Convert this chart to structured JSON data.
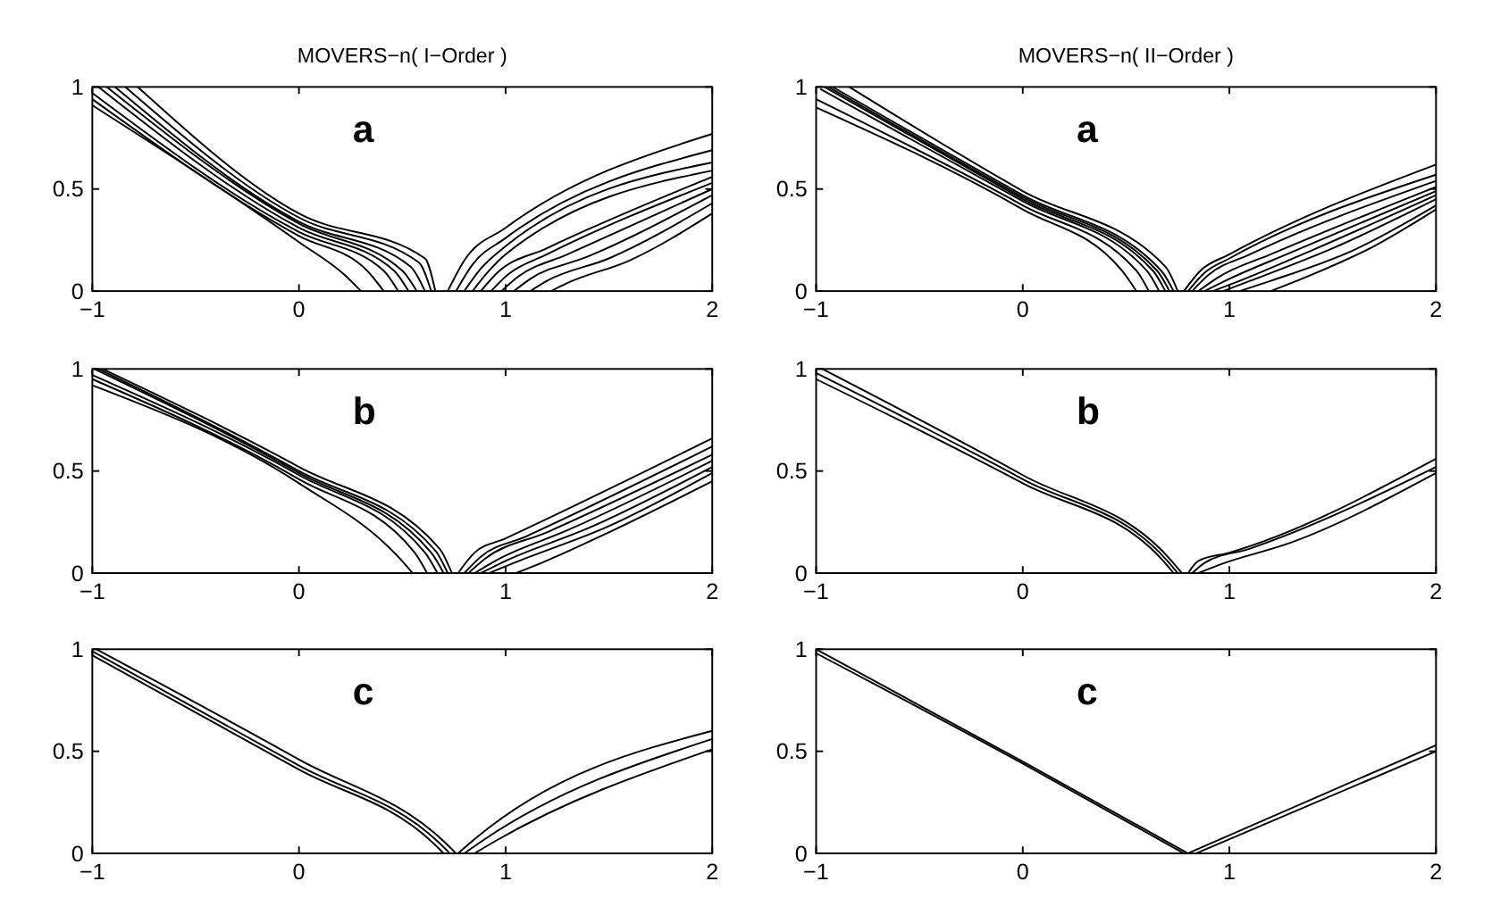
{
  "chart_data": [
    {
      "type": "line",
      "title": "MOVERS−n( I−Order )",
      "annotations": [
        "a"
      ],
      "xlim": [
        -1,
        2
      ],
      "ylim": [
        0,
        1
      ],
      "xticks": [
        -1,
        0,
        1,
        2
      ],
      "yticks": [
        0,
        0.5,
        1
      ],
      "series": [
        {
          "color": "#000000",
          "x": [
            -1,
            0,
            0.22,
            0.3
          ],
          "values": [
            0.91,
            0.24,
            0.08,
            0
          ]
        },
        {
          "color": "#000000",
          "x": [
            -1,
            0,
            0.33,
            0.41
          ],
          "values": [
            0.94,
            0.27,
            0.1,
            0
          ]
        },
        {
          "color": "#000000",
          "x": [
            -1,
            0,
            0.41,
            0.48
          ],
          "values": [
            0.97,
            0.29,
            0.1,
            0
          ]
        },
        {
          "color": "#000000",
          "x": [
            -0.97,
            0,
            0.46,
            0.53
          ],
          "values": [
            1,
            0.31,
            0.1,
            0
          ]
        },
        {
          "color": "#000000",
          "x": [
            -0.93,
            0,
            0.5,
            0.57
          ],
          "values": [
            1,
            0.33,
            0.1,
            0
          ]
        },
        {
          "color": "#000000",
          "x": [
            -0.89,
            0,
            0.54,
            0.61
          ],
          "values": [
            1,
            0.34,
            0.12,
            0
          ]
        },
        {
          "color": "#000000",
          "x": [
            -0.84,
            0,
            0.58,
            0.64
          ],
          "values": [
            1,
            0.36,
            0.14,
            0
          ]
        },
        {
          "color": "#000000",
          "x": [
            -0.78,
            0,
            0.61,
            0.66
          ],
          "values": [
            1,
            0.38,
            0.16,
            0
          ]
        },
        {
          "color": "#000000",
          "x": [
            0.72,
            0.8,
            1,
            2
          ],
          "values": [
            0,
            0.15,
            0.31,
            0.77
          ]
        },
        {
          "color": "#000000",
          "x": [
            0.76,
            0.84,
            1,
            2
          ],
          "values": [
            0,
            0.13,
            0.26,
            0.69
          ]
        },
        {
          "color": "#000000",
          "x": [
            0.8,
            0.88,
            1,
            2
          ],
          "values": [
            0,
            0.11,
            0.22,
            0.63
          ]
        },
        {
          "color": "#000000",
          "x": [
            0.84,
            0.92,
            1,
            2
          ],
          "values": [
            0,
            0.1,
            0.18,
            0.59
          ]
        },
        {
          "color": "#000000",
          "x": [
            0.88,
            0.96,
            1.2,
            2
          ],
          "values": [
            0,
            0.09,
            0.21,
            0.56
          ]
        },
        {
          "color": "#000000",
          "x": [
            0.93,
            1.01,
            1.2,
            2
          ],
          "values": [
            0,
            0.08,
            0.18,
            0.53
          ]
        },
        {
          "color": "#000000",
          "x": [
            0.98,
            1.06,
            1.3,
            2
          ],
          "values": [
            0,
            0.07,
            0.18,
            0.5
          ]
        },
        {
          "color": "#000000",
          "x": [
            1.04,
            1.12,
            1.4,
            2
          ],
          "values": [
            0,
            0.06,
            0.17,
            0.47
          ]
        },
        {
          "color": "#000000",
          "x": [
            1.12,
            1.2,
            1.5,
            2
          ],
          "values": [
            0,
            0.05,
            0.16,
            0.43
          ]
        },
        {
          "color": "#000000",
          "x": [
            1.22,
            1.3,
            1.6,
            2
          ],
          "values": [
            0,
            0.04,
            0.15,
            0.38
          ]
        }
      ]
    },
    {
      "type": "line",
      "title": "MOVERS−n( II−Order )",
      "annotations": [
        "a"
      ],
      "xlim": [
        -1,
        2
      ],
      "ylim": [
        0,
        1
      ],
      "xticks": [
        -1,
        0,
        1,
        2
      ],
      "yticks": [
        0,
        0.5,
        1
      ],
      "series": [
        {
          "color": "#000000",
          "x": [
            -1,
            0,
            0.48,
            0.55
          ],
          "values": [
            0.9,
            0.4,
            0.1,
            0
          ]
        },
        {
          "color": "#000000",
          "x": [
            -1,
            0,
            0.55,
            0.61
          ],
          "values": [
            0.94,
            0.42,
            0.1,
            0
          ]
        },
        {
          "color": "#000000",
          "x": [
            -0.98,
            0,
            0.6,
            0.66
          ],
          "values": [
            0.99,
            0.44,
            0.1,
            0
          ]
        },
        {
          "color": "#000000",
          "x": [
            -0.96,
            0,
            0.63,
            0.69
          ],
          "values": [
            1,
            0.45,
            0.1,
            0
          ]
        },
        {
          "color": "#000000",
          "x": [
            -0.94,
            0,
            0.65,
            0.71
          ],
          "values": [
            1,
            0.46,
            0.1,
            0
          ]
        },
        {
          "color": "#000000",
          "x": [
            -0.92,
            0,
            0.67,
            0.73
          ],
          "values": [
            1,
            0.47,
            0.1,
            0
          ]
        },
        {
          "color": "#000000",
          "x": [
            -0.84,
            0,
            0.69,
            0.75
          ],
          "values": [
            1,
            0.49,
            0.12,
            0
          ]
        },
        {
          "color": "#000000",
          "x": [
            0.78,
            0.86,
            1,
            2
          ],
          "values": [
            0,
            0.1,
            0.18,
            0.62
          ]
        },
        {
          "color": "#000000",
          "x": [
            0.8,
            0.88,
            1,
            2
          ],
          "values": [
            0,
            0.09,
            0.16,
            0.57
          ]
        },
        {
          "color": "#000000",
          "x": [
            0.82,
            0.9,
            1.1,
            2
          ],
          "values": [
            0,
            0.08,
            0.18,
            0.54
          ]
        },
        {
          "color": "#000000",
          "x": [
            0.85,
            0.95,
            1.2,
            2
          ],
          "values": [
            0,
            0.07,
            0.18,
            0.51
          ]
        },
        {
          "color": "#000000",
          "x": [
            0.88,
            1,
            1.3,
            2
          ],
          "values": [
            0,
            0.06,
            0.19,
            0.49
          ]
        },
        {
          "color": "#000000",
          "x": [
            0.92,
            1.05,
            1.4,
            2
          ],
          "values": [
            0,
            0.05,
            0.2,
            0.47
          ]
        },
        {
          "color": "#000000",
          "x": [
            0.97,
            1.1,
            1.5,
            2
          ],
          "values": [
            0,
            0.05,
            0.21,
            0.45
          ]
        },
        {
          "color": "#000000",
          "x": [
            1.05,
            1.2,
            1.6,
            2
          ],
          "values": [
            0,
            0.05,
            0.2,
            0.42
          ]
        },
        {
          "color": "#000000",
          "x": [
            1.2,
            1.35,
            1.7,
            2
          ],
          "values": [
            0,
            0.06,
            0.22,
            0.4
          ]
        }
      ]
    },
    {
      "type": "line",
      "annotations": [
        "b"
      ],
      "xlim": [
        -1,
        2
      ],
      "ylim": [
        0,
        1
      ],
      "xticks": [
        -1,
        0,
        1,
        2
      ],
      "yticks": [
        0,
        0.5,
        1
      ],
      "series": [
        {
          "color": "#000000",
          "x": [
            -1,
            0,
            0.48,
            0.55
          ],
          "values": [
            0.92,
            0.44,
            0.08,
            0
          ]
        },
        {
          "color": "#000000",
          "x": [
            -1,
            0,
            0.56,
            0.62
          ],
          "values": [
            0.95,
            0.46,
            0.1,
            0
          ]
        },
        {
          "color": "#000000",
          "x": [
            -1,
            0,
            0.61,
            0.67
          ],
          "values": [
            0.97,
            0.48,
            0.1,
            0
          ]
        },
        {
          "color": "#000000",
          "x": [
            -0.99,
            0,
            0.64,
            0.7
          ],
          "values": [
            1,
            0.49,
            0.1,
            0
          ]
        },
        {
          "color": "#000000",
          "x": [
            -0.97,
            0,
            0.66,
            0.72
          ],
          "values": [
            1,
            0.5,
            0.11,
            0
          ]
        },
        {
          "color": "#000000",
          "x": [
            -0.95,
            0,
            0.68,
            0.74
          ],
          "values": [
            1,
            0.52,
            0.12,
            0
          ]
        },
        {
          "color": "#000000",
          "x": [
            0.77,
            0.85,
            1,
            2
          ],
          "values": [
            0,
            0.1,
            0.17,
            0.66
          ]
        },
        {
          "color": "#000000",
          "x": [
            0.8,
            0.88,
            1.1,
            2
          ],
          "values": [
            0,
            0.08,
            0.18,
            0.62
          ]
        },
        {
          "color": "#000000",
          "x": [
            0.82,
            0.9,
            1.2,
            2
          ],
          "values": [
            0,
            0.07,
            0.2,
            0.58
          ]
        },
        {
          "color": "#000000",
          "x": [
            0.85,
            0.95,
            1.3,
            2
          ],
          "values": [
            0,
            0.06,
            0.21,
            0.55
          ]
        },
        {
          "color": "#000000",
          "x": [
            0.88,
            1,
            1.4,
            2
          ],
          "values": [
            0,
            0.06,
            0.22,
            0.52
          ]
        },
        {
          "color": "#000000",
          "x": [
            0.92,
            1.04,
            1.5,
            2
          ],
          "values": [
            0,
            0.05,
            0.23,
            0.49
          ]
        },
        {
          "color": "#000000",
          "x": [
            1.05,
            1.15,
            1.5,
            2
          ],
          "values": [
            0,
            0.04,
            0.2,
            0.45
          ]
        }
      ]
    },
    {
      "type": "line",
      "annotations": [
        "b"
      ],
      "xlim": [
        -1,
        2
      ],
      "ylim": [
        0,
        1
      ],
      "xticks": [
        -1,
        0,
        1,
        2
      ],
      "yticks": [
        0,
        0.5,
        1
      ],
      "series": [
        {
          "color": "#000000",
          "x": [
            -1,
            0,
            0.68,
            0.73
          ],
          "values": [
            0.95,
            0.44,
            0.06,
            0
          ]
        },
        {
          "color": "#000000",
          "x": [
            -1,
            0,
            0.7,
            0.75
          ],
          "values": [
            0.98,
            0.46,
            0.06,
            0
          ]
        },
        {
          "color": "#000000",
          "x": [
            -0.97,
            0,
            0.72,
            0.77
          ],
          "values": [
            1,
            0.48,
            0.06,
            0
          ]
        },
        {
          "color": "#000000",
          "x": [
            0.8,
            0.85,
            1,
            2
          ],
          "values": [
            0,
            0.06,
            0.1,
            0.56
          ]
        },
        {
          "color": "#000000",
          "x": [
            0.82,
            0.88,
            1.1,
            2
          ],
          "values": [
            0,
            0.05,
            0.12,
            0.52
          ]
        },
        {
          "color": "#000000",
          "x": [
            0.85,
            0.95,
            1.3,
            2
          ],
          "values": [
            0,
            0.04,
            0.15,
            0.49
          ]
        }
      ]
    },
    {
      "type": "line",
      "annotations": [
        "c"
      ],
      "xlim": [
        -1,
        2
      ],
      "ylim": [
        0,
        1
      ],
      "xticks": [
        -1,
        0,
        1,
        2
      ],
      "yticks": [
        0,
        0.5,
        1
      ],
      "series": [
        {
          "color": "#000000",
          "x": [
            -1,
            0,
            0.65,
            0.7
          ],
          "values": [
            0.97,
            0.41,
            0.05,
            0
          ]
        },
        {
          "color": "#000000",
          "x": [
            -1,
            0,
            0.68,
            0.73
          ],
          "values": [
            0.99,
            0.43,
            0.05,
            0
          ]
        },
        {
          "color": "#000000",
          "x": [
            -0.98,
            0,
            0.71,
            0.76
          ],
          "values": [
            1,
            0.46,
            0.05,
            0
          ]
        },
        {
          "color": "#000000",
          "x": [
            0.77,
            0.85,
            2
          ],
          "values": [
            0,
            0.07,
            0.6
          ]
        },
        {
          "color": "#000000",
          "x": [
            0.8,
            0.9,
            2
          ],
          "values": [
            0,
            0.07,
            0.56
          ]
        },
        {
          "color": "#000000",
          "x": [
            0.85,
            0.95,
            2
          ],
          "values": [
            0,
            0.06,
            0.51
          ]
        }
      ]
    },
    {
      "type": "line",
      "annotations": [
        "c"
      ],
      "xlim": [
        -1,
        2
      ],
      "ylim": [
        0,
        1
      ],
      "xticks": [
        -1,
        0,
        1,
        2
      ],
      "yticks": [
        0,
        0.5,
        1
      ],
      "series": [
        {
          "color": "#000000",
          "x": [
            -1,
            0,
            0.8
          ],
          "values": [
            1,
            0.45,
            0
          ]
        },
        {
          "color": "#000000",
          "x": [
            -1,
            0,
            0.78
          ],
          "values": [
            0.98,
            0.44,
            0
          ]
        },
        {
          "color": "#000000",
          "x": [
            0.8,
            2
          ],
          "values": [
            0,
            0.53
          ]
        },
        {
          "color": "#000000",
          "x": [
            0.84,
            2
          ],
          "values": [
            0,
            0.5
          ]
        }
      ]
    }
  ]
}
